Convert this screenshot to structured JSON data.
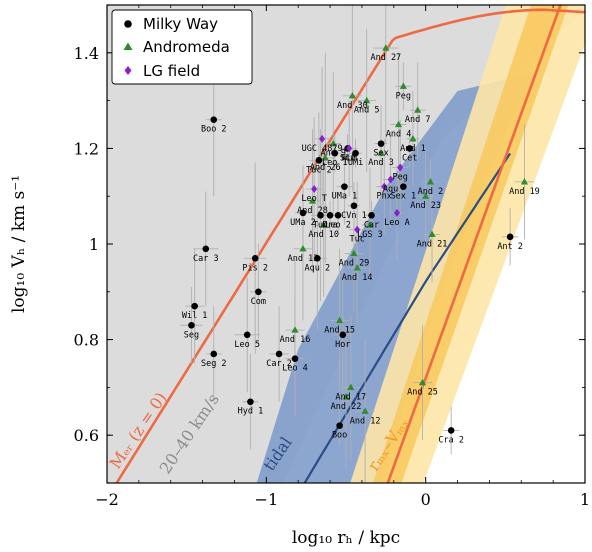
{
  "chart_data": {
    "type": "scatter",
    "xlabel": "log₁₀ rₕ / kpc",
    "ylabel": "log₁₀ Vₕ / km s⁻¹",
    "xlim": [
      -2,
      1
    ],
    "ylim": [
      0.5,
      1.5
    ],
    "xticks": [
      -2,
      -1,
      0,
      1
    ],
    "xtick_labels": [
      "−2",
      "−1",
      "0",
      "1"
    ],
    "yticks": [
      0.6,
      0.8,
      1.0,
      1.2,
      1.4
    ],
    "ytick_labels": [
      "0.6",
      "0.8",
      "1",
      "1.2",
      "1.4"
    ],
    "legend_position": "top-left",
    "legend": [
      {
        "name": "Milky Way",
        "marker": "circle",
        "color": "#000000"
      },
      {
        "name": "Andromeda",
        "marker": "triangle",
        "color": "#2e8b2e"
      },
      {
        "name": "LG field",
        "marker": "diamond",
        "color": "#8b1fd0"
      }
    ],
    "band_labels": {
      "mer": "Mₑᵣ (z = 0)",
      "velocity": "20–40 km/s",
      "tidal": "tidal",
      "rmx": "rₘₓ–Vₘₓ"
    },
    "colors": {
      "gray_band": "#dcdcdc",
      "blue_band": "#7f9ccb",
      "orange_curve": "#ee6a44",
      "blue_curve": "#2b4d85",
      "yellow_outer": "#fde6a6",
      "yellow_inner": "#f8c85a",
      "orange_line": "#ee6a44",
      "milky_way": "#000000",
      "andromeda": "#2e8b2e",
      "lg_field": "#8b1fd0",
      "errorbar": "#b0b0b0"
    },
    "series": [
      {
        "name": "Milky Way",
        "points": [
          {
            "label": "Boo 2",
            "x": -1.33,
            "y": 1.26,
            "xerr": 0.05,
            "yerr": 0.16
          },
          {
            "label": "Car 3",
            "x": -1.38,
            "y": 0.99,
            "xerr": 0.08,
            "yerr": 0.12
          },
          {
            "label": "Wil 1",
            "x": -1.45,
            "y": 0.87,
            "xerr": 0.06,
            "yerr": 0.12
          },
          {
            "label": "Seg",
            "x": -1.47,
            "y": 0.83,
            "xerr": 0.07,
            "yerr": 0.08
          },
          {
            "label": "Seg 2",
            "x": -1.33,
            "y": 0.77,
            "xerr": 0.05,
            "yerr": 0.1
          },
          {
            "label": "Pis 2",
            "x": -1.07,
            "y": 0.97,
            "xerr": 0.07,
            "yerr": 0.2
          },
          {
            "label": "Com",
            "x": -1.05,
            "y": 0.9,
            "xerr": 0.05,
            "yerr": 0.1
          },
          {
            "label": "Leo 5",
            "x": -1.12,
            "y": 0.81,
            "xerr": 0.08,
            "yerr": 0.12
          },
          {
            "label": "Hyd 1",
            "x": -1.1,
            "y": 0.67,
            "xerr": 0.05,
            "yerr": 0.1
          },
          {
            "label": "Car 2",
            "x": -0.92,
            "y": 0.77,
            "xerr": 0.06,
            "yerr": 0.1
          },
          {
            "label": "Leo 4",
            "x": -0.82,
            "y": 0.76,
            "xerr": 0.06,
            "yerr": 0.12
          },
          {
            "label": "Hor",
            "x": -0.52,
            "y": 0.81,
            "xerr": 0.06,
            "yerr": 0.15
          },
          {
            "label": "Boo",
            "x": -0.54,
            "y": 0.62,
            "xerr": 0.04,
            "yerr": 0.04
          },
          {
            "label": "Cra 2",
            "x": 0.16,
            "y": 0.61,
            "xerr": 0.05,
            "yerr": 0.05
          },
          {
            "label": "Ant 2",
            "x": 0.53,
            "y": 1.015,
            "xerr": 0.05,
            "yerr": 0.06
          },
          {
            "label": "UMa 2",
            "x": -0.77,
            "y": 1.065,
            "xerr": 0.05,
            "yerr": 0.1
          },
          {
            "label": "UMa 1",
            "x": -0.51,
            "y": 1.12,
            "xerr": 0.05,
            "yerr": 0.08
          },
          {
            "label": "Tuc",
            "x": -0.66,
            "y": 1.06,
            "xerr": 0.06,
            "yerr": 0.18
          },
          {
            "label": "Tuc 2",
            "x": -0.67,
            "y": 1.175,
            "xerr": 0.06,
            "yerr": 0.1
          },
          {
            "label": "Aqu 2",
            "x": -0.68,
            "y": 0.97,
            "xerr": 0.06,
            "yerr": 0.15
          },
          {
            "label": "Car",
            "x": -0.34,
            "y": 1.06,
            "xerr": 0.04,
            "yerr": 0.03
          },
          {
            "label": "Dra",
            "x": -0.6,
            "y": 1.06,
            "xerr": 0.04,
            "yerr": 0.03
          },
          {
            "label": "UMi",
            "x": -0.44,
            "y": 1.19,
            "xerr": 0.04,
            "yerr": 0.03
          },
          {
            "label": "Scu",
            "x": -0.49,
            "y": 1.2,
            "xerr": 0.04,
            "yerr": 0.03
          },
          {
            "label": "Sex",
            "x": -0.28,
            "y": 1.21,
            "xerr": 0.04,
            "yerr": 0.03
          },
          {
            "label": "Sex 1",
            "x": -0.14,
            "y": 1.12,
            "xerr": 0.04,
            "yerr": 0.03
          },
          {
            "label": "Leo 1",
            "x": -0.57,
            "y": 1.19,
            "xerr": 0.04,
            "yerr": 0.04
          },
          {
            "label": "Leo 2",
            "x": -0.55,
            "y": 1.06,
            "xerr": 0.04,
            "yerr": 0.04
          },
          {
            "label": "CVn 1",
            "x": -0.45,
            "y": 1.08,
            "xerr": 0.04,
            "yerr": 0.05
          },
          {
            "label": "Cet",
            "x": -0.1,
            "y": 1.2,
            "xerr": 0.04,
            "yerr": 0.04
          }
        ]
      },
      {
        "name": "Andromeda",
        "points": [
          {
            "label": "And 27",
            "x": -0.25,
            "y": 1.41,
            "xerr": 0.08,
            "yerr": 0.2
          },
          {
            "label": "And 30",
            "x": -0.46,
            "y": 1.31,
            "xerr": 0.06,
            "yerr": 0.2
          },
          {
            "label": "And 5",
            "x": -0.37,
            "y": 1.3,
            "xerr": 0.06,
            "yerr": 0.15
          },
          {
            "label": "Peg",
            "x": -0.14,
            "y": 1.33,
            "xerr": 0.05,
            "yerr": 0.05
          },
          {
            "label": "And 4",
            "x": -0.17,
            "y": 1.25,
            "xerr": 0.05,
            "yerr": 0.15
          },
          {
            "label": "And 1",
            "x": -0.08,
            "y": 1.22,
            "xerr": 0.04,
            "yerr": 0.1
          },
          {
            "label": "And 3",
            "x": -0.28,
            "y": 1.19,
            "xerr": 0.04,
            "yerr": 0.1
          },
          {
            "label": "And 2",
            "x": 0.03,
            "y": 1.13,
            "xerr": 0.04,
            "yerr": 0.05
          },
          {
            "label": "And 19",
            "x": 0.62,
            "y": 1.13,
            "xerr": 0.06,
            "yerr": 0.12
          },
          {
            "label": "And 23",
            "x": 0.0,
            "y": 1.1,
            "xerr": 0.05,
            "yerr": 0.1
          },
          {
            "label": "And 21",
            "x": 0.04,
            "y": 1.02,
            "xerr": 0.05,
            "yerr": 0.1
          },
          {
            "label": "And 26",
            "x": -0.63,
            "y": 1.18,
            "xerr": 0.06,
            "yerr": 0.22
          },
          {
            "label": "And 28",
            "x": -0.71,
            "y": 1.09,
            "xerr": 0.05,
            "yerr": 0.15
          },
          {
            "label": "And 13",
            "x": -0.77,
            "y": 0.99,
            "xerr": 0.06,
            "yerr": 0.15
          },
          {
            "label": "And 29",
            "x": -0.45,
            "y": 0.98,
            "xerr": 0.06,
            "yerr": 0.12
          },
          {
            "label": "And 14",
            "x": -0.43,
            "y": 0.95,
            "xerr": 0.06,
            "yerr": 0.12
          },
          {
            "label": "And 15",
            "x": -0.54,
            "y": 0.84,
            "xerr": 0.06,
            "yerr": 0.15
          },
          {
            "label": "And 16",
            "x": -0.82,
            "y": 0.82,
            "xerr": 0.06,
            "yerr": 0.15
          },
          {
            "label": "And 25",
            "x": -0.02,
            "y": 0.71,
            "xerr": 0.06,
            "yerr": 0.12
          },
          {
            "label": "And 17",
            "x": -0.47,
            "y": 0.7,
            "xerr": 0.06,
            "yerr": 0.15
          },
          {
            "label": "And 22",
            "x": -0.5,
            "y": 0.68,
            "xerr": 0.06,
            "yerr": 0.15
          },
          {
            "label": "And 12",
            "x": -0.38,
            "y": 0.65,
            "xerr": 0.06,
            "yerr": 0.15
          },
          {
            "label": "And 9",
            "x": -0.58,
            "y": 1.21,
            "xerr": 0.05,
            "yerr": 0.15
          },
          {
            "label": "And 10",
            "x": -0.64,
            "y": 1.04,
            "xerr": 0.05,
            "yerr": 0.15
          },
          {
            "label": "And 7",
            "x": -0.05,
            "y": 1.28,
            "xerr": 0.05,
            "yerr": 0.1
          },
          {
            "label": "LGS 3",
            "x": -0.35,
            "y": 1.04,
            "xerr": 0.05,
            "yerr": 0.12
          }
        ]
      },
      {
        "name": "LG field",
        "points": [
          {
            "label": "UGC 4879",
            "x": -0.65,
            "y": 1.22,
            "xerr": 0.05,
            "yerr": 0.15
          },
          {
            "label": "Leo T",
            "x": -0.7,
            "y": 1.115,
            "xerr": 0.05,
            "yerr": 0.15
          },
          {
            "label": "Aqu",
            "x": -0.22,
            "y": 1.135,
            "xerr": 0.05,
            "yerr": 0.1
          },
          {
            "label": "Leo A",
            "x": -0.18,
            "y": 1.065,
            "xerr": 0.05,
            "yerr": 0.1
          },
          {
            "label": "Tuc",
            "x": -0.43,
            "y": 1.03,
            "xerr": 0.05,
            "yerr": 0.1
          },
          {
            "label": "WLM",
            "x": -0.48,
            "y": 1.2,
            "xerr": 0.05,
            "yerr": 0.1
          },
          {
            "label": "Phx",
            "x": -0.26,
            "y": 1.12,
            "xerr": 0.05,
            "yerr": 0.1
          },
          {
            "label": "Peg",
            "x": -0.16,
            "y": 1.16,
            "xerr": 0.05,
            "yerr": 0.1
          }
        ]
      }
    ]
  }
}
